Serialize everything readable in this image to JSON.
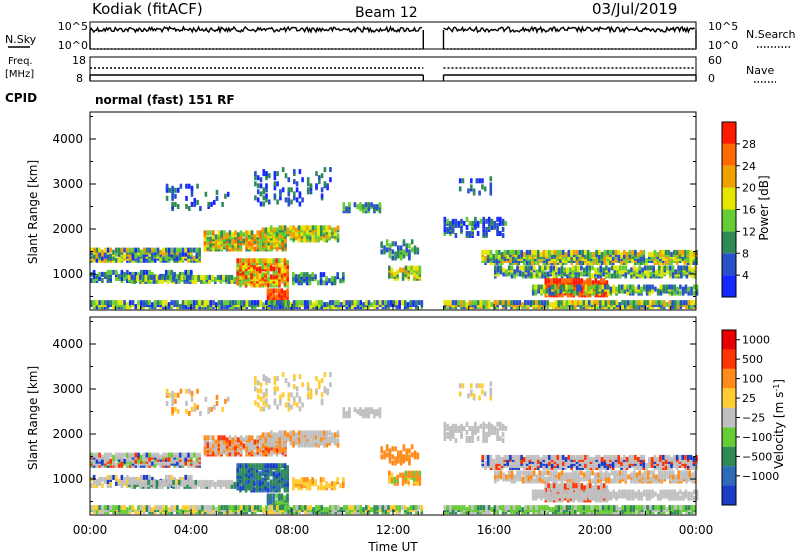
{
  "header": {
    "station": "Kodiak (fitACF)",
    "beam": "Beam 12",
    "date": "03/Jul/2019"
  },
  "status_panels": {
    "nsky_label": "N.Sky",
    "nsky_ticks": [
      "10^5",
      "10^0"
    ],
    "nsearch_label": "N.Search",
    "nsearch_ticks": [
      "10^5",
      "10^0"
    ],
    "freq_label_1": "Freq.",
    "freq_label_2": "[MHz]",
    "freq_ticks": [
      "18",
      "8"
    ],
    "nave_label": "Nave",
    "nave_ticks": [
      "60",
      "0"
    ],
    "cpid_label": "CPID",
    "cpid_text": "normal (fast) 151 RF"
  },
  "chart_data": [
    {
      "type": "heatmap",
      "name": "power",
      "ylabel": "Slant Range [km]",
      "ylim": [
        200,
        4600
      ],
      "yticks": [
        "1000",
        "2000",
        "3000",
        "4000"
      ],
      "colorbar_label": "Power [dB]",
      "colorbar_ticks": [
        "4",
        "8",
        "12",
        "16",
        "20",
        "24",
        "28"
      ],
      "colorbar_colors": [
        "#1428ff",
        "#2850c8",
        "#2e8b57",
        "#66cc33",
        "#e6e600",
        "#f0a000",
        "#ff6a00",
        "#ff1a00"
      ],
      "data_gap_hours": [
        13.2,
        14.0
      ]
    },
    {
      "type": "heatmap",
      "name": "velocity",
      "ylabel": "Slant Range [km]",
      "ylim": [
        200,
        4600
      ],
      "yticks": [
        "1000",
        "2000",
        "3000",
        "4000"
      ],
      "colorbar_label": "Velocity [m s",
      "colorbar_label_sup": "-1",
      "colorbar_label_end": "]",
      "colorbar_ticks": [
        "1000",
        "500",
        "100",
        "25",
        "−25",
        "−100",
        "−500",
        "−1000"
      ],
      "colorbar_colors": [
        "#1a3cc8",
        "#2e6bb8",
        "#2e8b57",
        "#66cc33",
        "#c0c0c0",
        "#ffcc33",
        "#ff8c1a",
        "#ff3300",
        "#e60000"
      ],
      "data_gap_hours": [
        13.2,
        14.0
      ]
    }
  ],
  "xaxis": {
    "label": "Time UT",
    "ticks": [
      "00:00",
      "04:00",
      "08:00",
      "12:00",
      "16:00",
      "20:00",
      "00:00"
    ]
  }
}
